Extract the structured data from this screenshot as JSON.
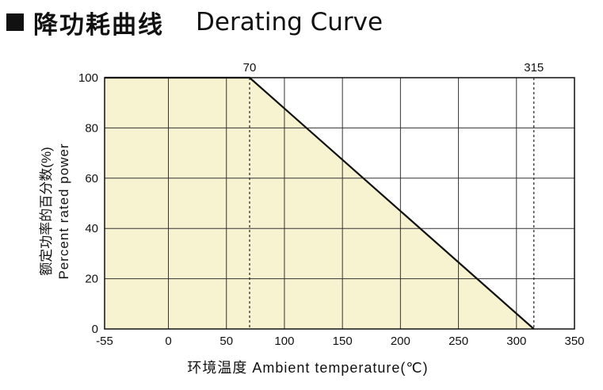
{
  "header": {
    "title_cn": "降功耗曲线",
    "title_en": "Derating Curve",
    "marker_icon": "filled-square"
  },
  "chart_data": {
    "type": "area",
    "title": "降功耗曲线 Derating Curve",
    "xlabel": "环境温度 Ambient temperature(℃)",
    "ylabel_cn": "额定功率的百分数(%)",
    "ylabel_en": "Percent rated power",
    "x_ticks": [
      "-55",
      "0",
      "50",
      "100",
      "150",
      "200",
      "250",
      "300",
      "350"
    ],
    "y_ticks": [
      "0",
      "20",
      "40",
      "60",
      "80",
      "100"
    ],
    "x_tick_values": [
      -55,
      0,
      50,
      100,
      150,
      200,
      250,
      300,
      350
    ],
    "y_tick_values": [
      0,
      20,
      40,
      60,
      80,
      100
    ],
    "xlim": [
      -55,
      350
    ],
    "ylim": [
      0,
      100
    ],
    "grid": true,
    "series": [
      {
        "x": [
          -55,
          70,
          315
        ],
        "y": [
          100,
          100,
          0
        ]
      }
    ],
    "annotations": [
      {
        "x": 70,
        "label": "70"
      },
      {
        "x": 315,
        "label": "315"
      }
    ],
    "colors": {
      "fill": "#f7f3d0",
      "line": "#111111",
      "grid": "#333333"
    }
  }
}
